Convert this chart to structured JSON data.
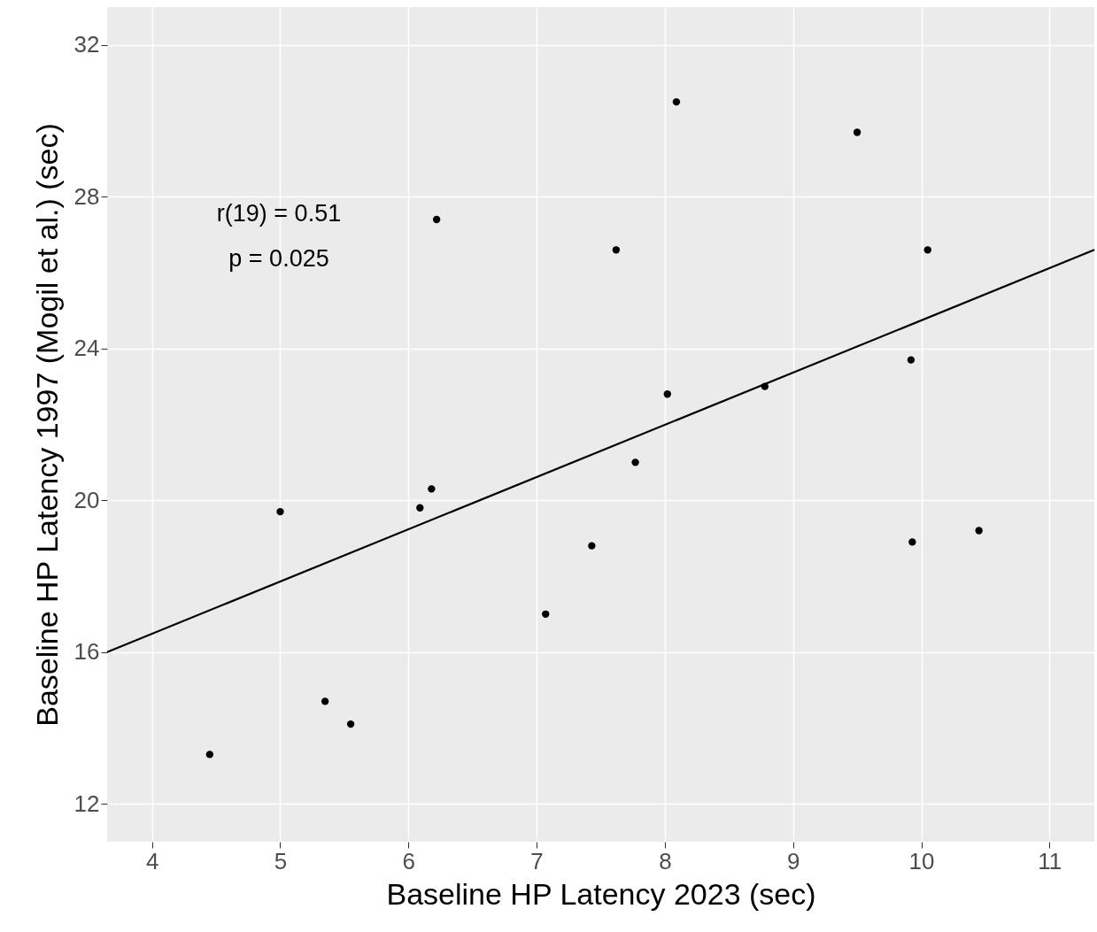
{
  "chart_data": {
    "type": "scatter",
    "xlabel": "Baseline HP Latency 2023 (sec)",
    "ylabel": "Baseline HP Latency 1997 (Mogil et al.) (sec)",
    "x": [
      4.45,
      5.0,
      5.35,
      5.55,
      6.09,
      6.18,
      6.22,
      7.07,
      7.43,
      7.62,
      7.77,
      8.02,
      8.09,
      8.78,
      9.5,
      9.92,
      9.93,
      10.05,
      10.45
    ],
    "series": [
      {
        "color": "#000000",
        "values": [
          13.3,
          19.7,
          14.7,
          14.1,
          19.8,
          20.3,
          27.4,
          17.0,
          18.8,
          26.6,
          21.0,
          22.8,
          30.5,
          23.0,
          29.7,
          23.7,
          18.9,
          26.6,
          19.2
        ]
      },
      {
        "type": "line",
        "marker": "none",
        "color": "#000000",
        "x": [
          3.65,
          11.35
        ],
        "values": [
          16.0,
          26.6
        ]
      }
    ],
    "annotations": [
      "r(19) = 0.51",
      "p = 0.025"
    ],
    "xlim": [
      3.65,
      11.35
    ],
    "ylim": [
      11,
      33
    ],
    "xticks": [
      4,
      5,
      6,
      7,
      8,
      9,
      10,
      11
    ],
    "yticks": [
      12,
      16,
      20,
      24,
      28,
      32
    ],
    "grid": true,
    "marker": "circle"
  }
}
